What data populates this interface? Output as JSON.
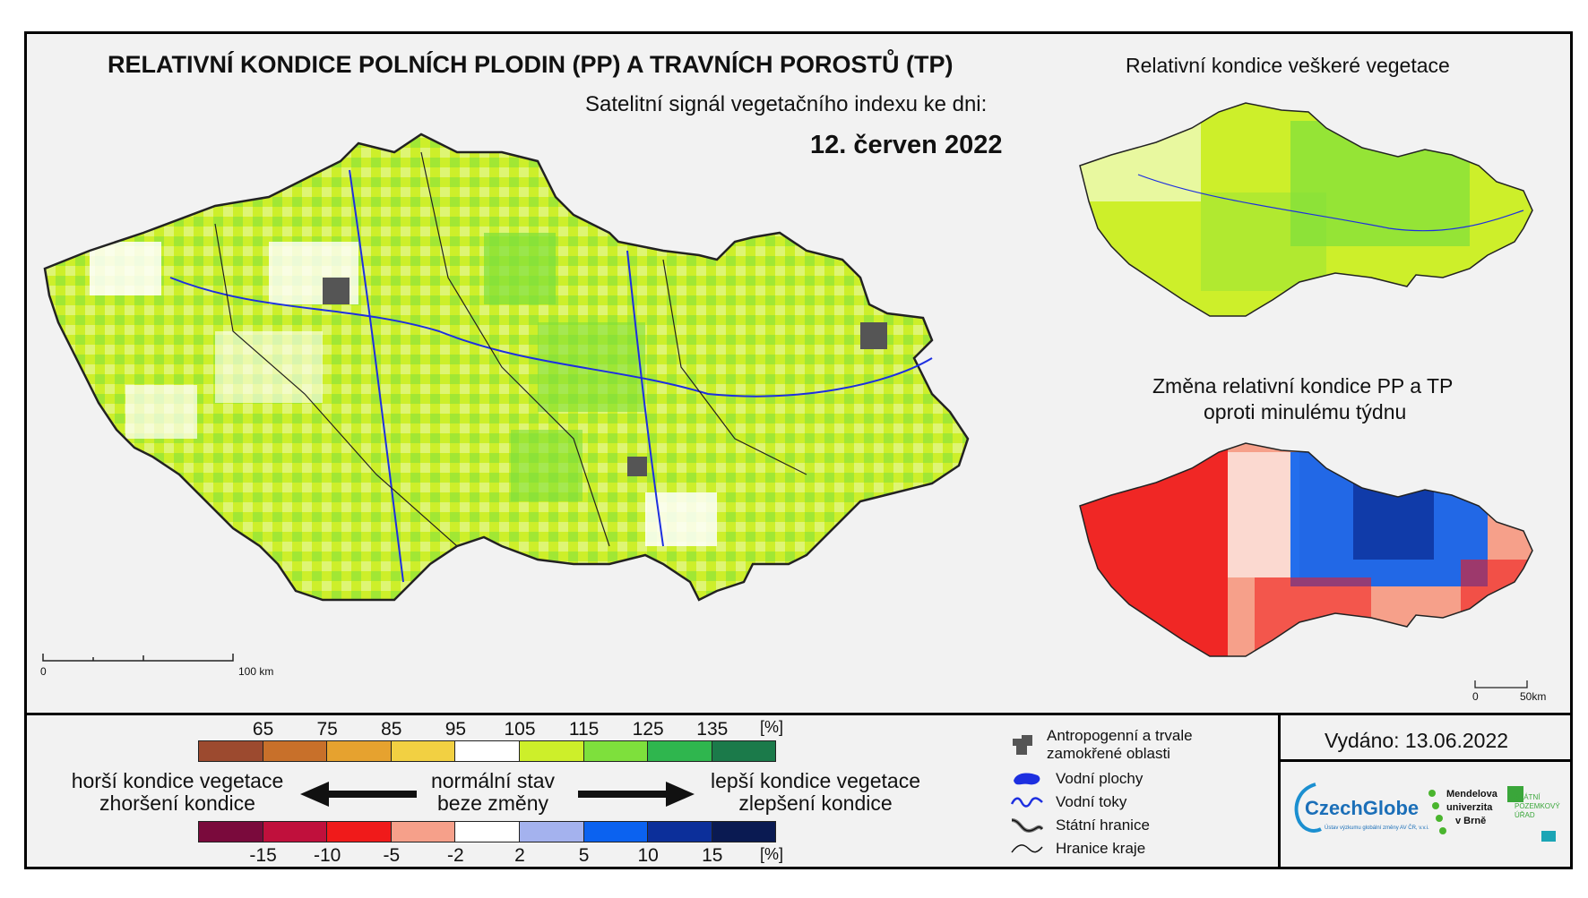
{
  "title": "RELATIVNÍ KONDICE POLNÍCH PLODIN (PP) A TRAVNÍCH POROSTŮ (TP)",
  "subtitle": "Satelitní signál vegetačního indexu ke dni:",
  "date": "12. červen 2022",
  "right_top_title": "Relativní kondice veškeré vegetace",
  "right_bottom_title_line1": "Změna relativní kondice PP a TP",
  "right_bottom_title_line2": "oproti minulému týdnu",
  "main_scale": {
    "zero": "0",
    "end": "100 km"
  },
  "small_scale": {
    "zero": "0",
    "end": "50km"
  },
  "legend_top": {
    "ticks": [
      "65",
      "75",
      "85",
      "95",
      "105",
      "115",
      "125",
      "135"
    ],
    "unit": "[%]",
    "colors": [
      "#9c4a2f",
      "#c8702a",
      "#e6a22f",
      "#f2d042",
      "#ffffff",
      "#cdef2a",
      "#7ee03c",
      "#2fb64e",
      "#1b7a4a"
    ]
  },
  "legend_bottom": {
    "ticks": [
      "-15",
      "-10",
      "-5",
      "-2",
      "2",
      "5",
      "10",
      "15"
    ],
    "unit": "[%]",
    "colors": [
      "#7a0a3c",
      "#c0103c",
      "#f01a1a",
      "#f6a08a",
      "#ffffff",
      "#a4b2ee",
      "#0b62f0",
      "#0c2f9a",
      "#0a1a52"
    ]
  },
  "left_label_1": "horší kondice vegetace",
  "left_label_2": "zhoršení kondice",
  "center_label_1": "normální stav",
  "center_label_2": "beze změny",
  "right_label_1": "lepší kondice vegetace",
  "right_label_2": "zlepšení kondice",
  "key": {
    "anthropogenic_1": "Antropogenní a trvale",
    "anthropogenic_2": "zamokřené oblasti",
    "water_areas": "Vodní plochy",
    "water_streams": "Vodní toky",
    "state_border": "Státní hranice",
    "region_border": "Hranice kraje"
  },
  "issued": "Vydáno: 13.06.2022",
  "logos": {
    "czechglobe": "CzechGlobe",
    "czechglobe_sub": "Ústav výzkumu globální změny AV ČR, v.v.i.",
    "mendelu_1": "Mendelova",
    "mendelu_2": "univerzita",
    "mendelu_3": "v Brně",
    "spu_1": "STÁTNÍ",
    "spu_2": "POZEMKOVÝ",
    "spu_3": "ÚŘAD"
  }
}
